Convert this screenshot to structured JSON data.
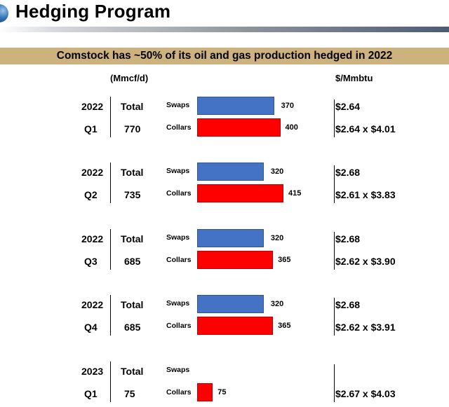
{
  "header": {
    "title": "Hedging Program"
  },
  "banner": {
    "text": "Comstock has ~50% of its oil and gas production hedged in 2022"
  },
  "column_headers": {
    "volume_unit": "(Mmcf/d)",
    "price_unit": "$/Mmbtu"
  },
  "labels": {
    "total": "Total",
    "swaps": "Swaps",
    "collars": "Collars"
  },
  "chart_data": {
    "type": "bar",
    "orientation": "horizontal",
    "title": "Comstock has ~50% of its oil and gas production hedged in 2022",
    "xlabel": "(Mmcf/d)",
    "xlim": [
      0,
      415
    ],
    "series": [
      {
        "name": "Swaps",
        "color": "#4472c4"
      },
      {
        "name": "Collars",
        "color": "#ff0000"
      }
    ],
    "groups": [
      {
        "year": "2022",
        "quarter": "Q1",
        "total": "770",
        "swaps": 370,
        "collars": 400,
        "swap_price": "$2.64",
        "collar_price": "$2.64 x $4.01"
      },
      {
        "year": "2022",
        "quarter": "Q2",
        "total": "735",
        "swaps": 320,
        "collars": 415,
        "swap_price": "$2.68",
        "collar_price": "$2.61 x $3.83"
      },
      {
        "year": "2022",
        "quarter": "Q3",
        "total": "685",
        "swaps": 320,
        "collars": 365,
        "swap_price": "$2.68",
        "collar_price": "$2.62 x $3.90"
      },
      {
        "year": "2022",
        "quarter": "Q4",
        "total": "685",
        "swaps": 320,
        "collars": 365,
        "swap_price": "$2.68",
        "collar_price": "$2.62 x $3.91"
      },
      {
        "year": "2023",
        "quarter": "Q1",
        "total": "75",
        "swaps": null,
        "collars": 75,
        "swap_price": "",
        "collar_price": "$2.67 x $4.03"
      }
    ]
  }
}
